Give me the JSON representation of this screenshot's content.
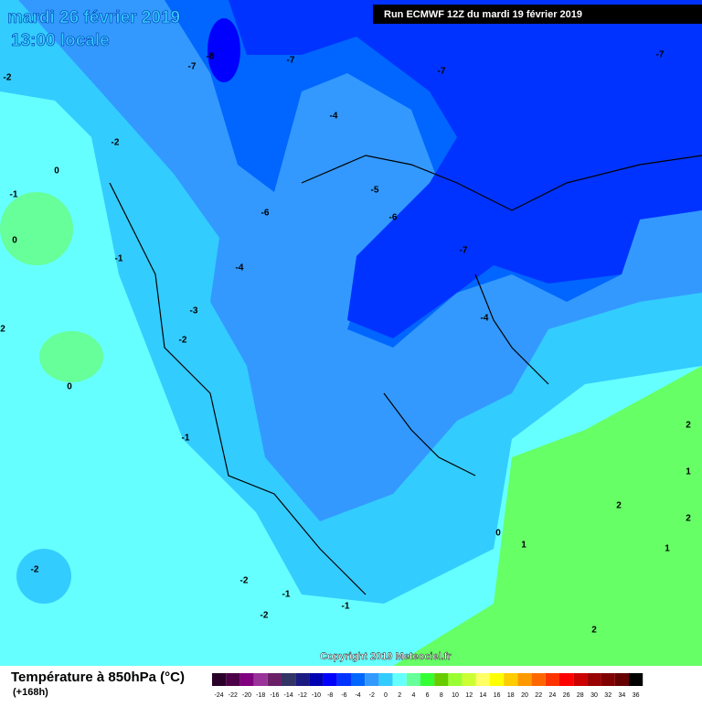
{
  "header": {
    "date": "mardi 26 février 2019",
    "time": "13:00 locale",
    "run": "Run ECMWF 12Z du mardi 19 février 2019"
  },
  "contour_labels": [
    -8,
    -7,
    -7,
    -7,
    -7,
    -2,
    -4,
    -2,
    0,
    -1,
    -5,
    -6,
    -6,
    -7,
    0,
    -1,
    -4,
    -3,
    -4,
    -2,
    2,
    0,
    -1,
    2,
    1,
    2,
    2,
    0,
    1,
    1,
    -2,
    -2,
    -1,
    -1,
    -2,
    2
  ],
  "copyright": "Copyright 2019 Meteociel.fr",
  "footer": {
    "title": "Température à 850hPa (°C)",
    "subtitle": "(+168h)"
  },
  "scale": {
    "labels": [
      -24,
      -22,
      -20,
      -18,
      -16,
      -14,
      -12,
      -10,
      -8,
      -6,
      -4,
      -2,
      0,
      2,
      4,
      6,
      8,
      10,
      12,
      14,
      16,
      18,
      20,
      22,
      24,
      26,
      28,
      30,
      32,
      34,
      36
    ],
    "colors": [
      "#2a0028",
      "#4d0047",
      "#800080",
      "#993399",
      "#6b1f66",
      "#333366",
      "#1a1a80",
      "#0000b3",
      "#0000ff",
      "#0033ff",
      "#0066ff",
      "#3399ff",
      "#33ccff",
      "#66ffff",
      "#66ff99",
      "#33ff33",
      "#66cc00",
      "#99ff33",
      "#ccff33",
      "#ffff66",
      "#ffff00",
      "#ffcc00",
      "#ff9900",
      "#ff6600",
      "#ff3300",
      "#ff0000",
      "#cc0000",
      "#990000",
      "#800000",
      "#660000",
      "#000000"
    ]
  }
}
